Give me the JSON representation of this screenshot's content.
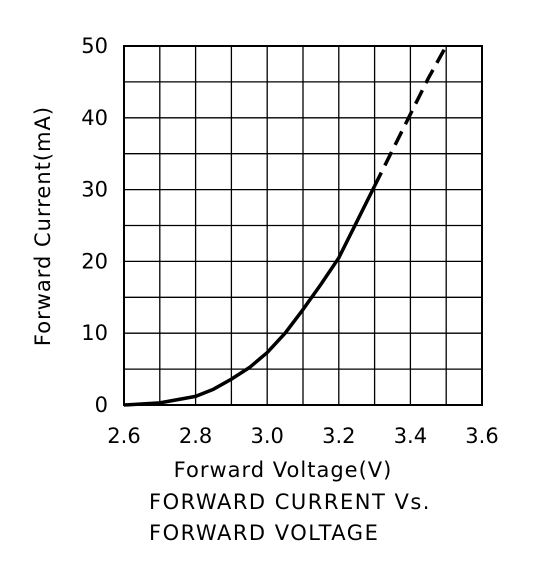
{
  "chart_data": {
    "type": "line",
    "title": "",
    "xlabel": "Forward Voltage(V)",
    "ylabel": "Forward Current(mA)",
    "caption_lines": [
      "FORWARD CURRENT Vs.",
      "FORWARD VOLTAGE"
    ],
    "xlim": [
      2.6,
      3.6
    ],
    "ylim": [
      0,
      50
    ],
    "x_ticks": [
      2.6,
      2.8,
      3.0,
      3.2,
      3.4,
      3.6
    ],
    "x_tick_labels": [
      "2.6",
      "2.8",
      "3.0",
      "3.2",
      "3.4",
      "3.6"
    ],
    "y_ticks": [
      0,
      10,
      20,
      30,
      40,
      50
    ],
    "y_tick_labels": [
      "0",
      "10",
      "20",
      "30",
      "40",
      "50"
    ],
    "x_grid_step": 0.1,
    "y_grid_step": 5,
    "grid": true,
    "series": [
      {
        "style": "solid",
        "color": "#000000",
        "x": [
          2.6,
          2.7,
          2.8,
          2.85,
          2.9,
          2.95,
          3.0,
          3.05,
          3.1,
          3.15,
          3.2,
          3.25,
          3.3
        ],
        "y": [
          0,
          0.3,
          1.2,
          2.2,
          3.6,
          5.2,
          7.3,
          10.0,
          13.3,
          16.8,
          20.5,
          25.5,
          30.5
        ]
      },
      {
        "style": "dashed",
        "color": "#000000",
        "x": [
          3.3,
          3.35,
          3.4,
          3.45,
          3.5
        ],
        "y": [
          30.5,
          35.5,
          40.5,
          45.5,
          50
        ]
      }
    ]
  }
}
